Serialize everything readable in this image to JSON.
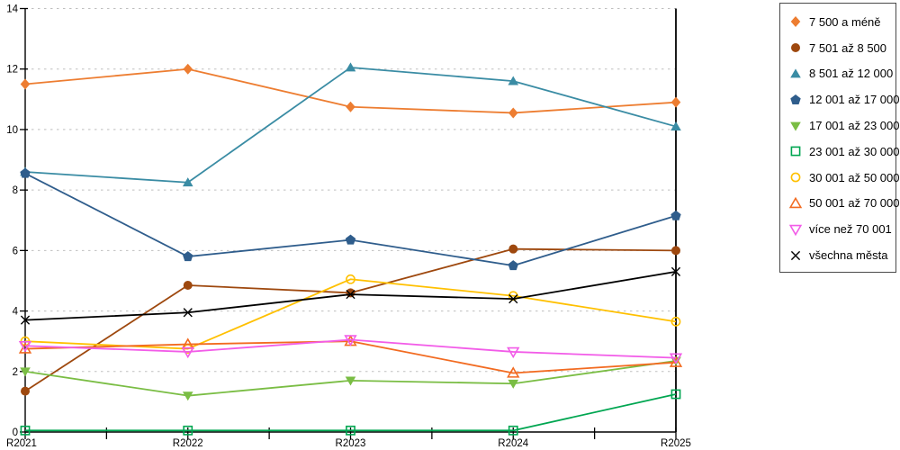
{
  "chart_data": {
    "type": "line",
    "title": "",
    "xlabel": "",
    "ylabel": "",
    "categories": [
      "R2021",
      "R2022",
      "R2023",
      "R2024",
      "R2025"
    ],
    "ylim": [
      0,
      14
    ],
    "yticks": [
      0,
      2,
      4,
      6,
      8,
      10,
      12,
      14
    ],
    "grid": "horizontal-dotted",
    "gridline_color": "#bfbfbf",
    "axis_color": "#000000",
    "legend_position": "right",
    "series": [
      {
        "name": "7 500 a méně",
        "color": "#ED7D31",
        "marker": "diamond",
        "fill": "filled",
        "values": [
          11.5,
          12.0,
          10.75,
          10.55,
          10.9
        ]
      },
      {
        "name": "7 501 až 8 500",
        "color": "#9E480E",
        "marker": "circle",
        "fill": "filled",
        "values": [
          1.35,
          4.85,
          4.6,
          6.05,
          6.0
        ]
      },
      {
        "name": "8 501 až 12 000",
        "color": "#3A8CA4",
        "marker": "triangle-up",
        "fill": "filled",
        "values": [
          8.6,
          8.25,
          12.05,
          11.6,
          10.1
        ]
      },
      {
        "name": "12 001 až 17 000",
        "color": "#2F5D8C",
        "marker": "pentagon",
        "fill": "filled",
        "values": [
          8.55,
          5.8,
          6.35,
          5.5,
          7.15
        ]
      },
      {
        "name": "17 001 až 23 000",
        "color": "#7ABD44",
        "marker": "triangle-down",
        "fill": "filled",
        "values": [
          2.0,
          1.2,
          1.7,
          1.6,
          2.35
        ]
      },
      {
        "name": "23 001 až 30 000",
        "color": "#00A651",
        "marker": "square",
        "fill": "hollow",
        "values": [
          0.05,
          0.05,
          0.05,
          0.05,
          1.25
        ]
      },
      {
        "name": "30 001 až 50 000",
        "color": "#FFC000",
        "marker": "circle",
        "fill": "hollow",
        "values": [
          3.0,
          2.75,
          5.05,
          4.5,
          3.65
        ]
      },
      {
        "name": "50 001 až 70 000",
        "color": "#F26B21",
        "marker": "triangle-up",
        "fill": "hollow",
        "values": [
          2.75,
          2.9,
          3.0,
          1.95,
          2.3
        ]
      },
      {
        "name": "více než 70 001",
        "color": "#F25CE8",
        "marker": "triangle-down",
        "fill": "hollow",
        "values": [
          2.85,
          2.65,
          3.05,
          2.65,
          2.45
        ]
      },
      {
        "name": "všechna města",
        "color": "#000000",
        "marker": "x",
        "fill": "line",
        "values": [
          3.7,
          3.95,
          4.55,
          4.4,
          5.3
        ]
      }
    ]
  }
}
